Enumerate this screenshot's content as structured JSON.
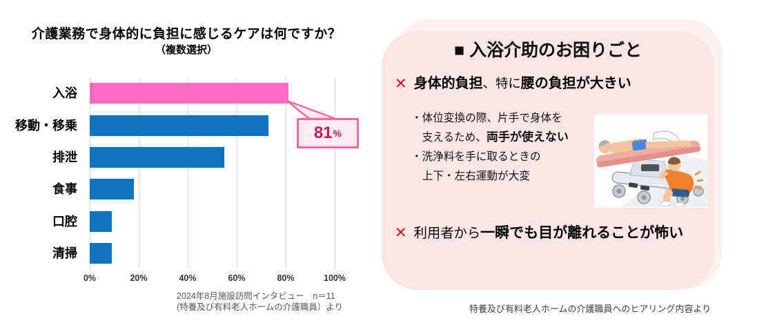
{
  "left_chart": {
    "title": "介護業務で身体的に負担に感じるケアは何ですか？",
    "subtitle": "（複数選択）",
    "callout": {
      "value": "81",
      "unit": "%"
    },
    "source_lines": [
      "2024年8月施設訪問インタビュー　n＝11",
      "(特養及び有料老人ホームの介護職員）より"
    ]
  },
  "chart_data": {
    "type": "bar",
    "orientation": "horizontal",
    "title": "介護業務で身体的に負担に感じるケアは何ですか？（複数選択）",
    "categories": [
      "入浴",
      "移動・移乗",
      "排泄",
      "食事",
      "口腔",
      "清掃"
    ],
    "values": [
      81,
      73,
      55,
      18,
      9,
      9
    ],
    "unit": "%",
    "xlim": [
      0,
      100
    ],
    "x_ticks": [
      "0%",
      "20%",
      "40%",
      "60%",
      "80%",
      "100%"
    ],
    "grid": true,
    "legend": "none",
    "highlight_category": "入浴",
    "highlight_color": "#fa69c3",
    "bar_color": "#1272c4",
    "annotation": {
      "target": "入浴",
      "label": "81%"
    }
  },
  "right_panel": {
    "title": "■ 入浴介助のお困りごと",
    "panel_color": "#fbe5e5",
    "cross_color": "#e60012",
    "bullets": [
      {
        "icon": "✕",
        "segments": [
          {
            "text": "身体的負担",
            "bold": true
          },
          {
            "text": "、特に",
            "bold": false
          },
          {
            "text": "腰の負担が大きい",
            "bold": true
          }
        ]
      },
      {
        "icon": "✕",
        "segments": [
          {
            "text": "利用者から",
            "bold": false
          },
          {
            "text": "一瞬でも目が離れることが怖い",
            "bold": true
          }
        ]
      }
    ],
    "sub_bullet_lines": [
      {
        "segments": [
          {
            "text": "・体位変換の際、片手で身体を",
            "bold": false
          }
        ]
      },
      {
        "segments": [
          {
            "text": "　支えるため、",
            "bold": false
          },
          {
            "text": "両手が使えない",
            "bold": true
          }
        ]
      },
      {
        "segments": [
          {
            "text": "・洗浄料を手に取るときの",
            "bold": false
          }
        ]
      },
      {
        "segments": [
          {
            "text": "　上下・左右運動が大変",
            "bold": false
          }
        ]
      }
    ],
    "illustration": "patient-on-bath-stretcher-with-crouching-caregiver",
    "caption": "特養及び有料老人ホームの介護職員へのヒアリング内容より"
  }
}
